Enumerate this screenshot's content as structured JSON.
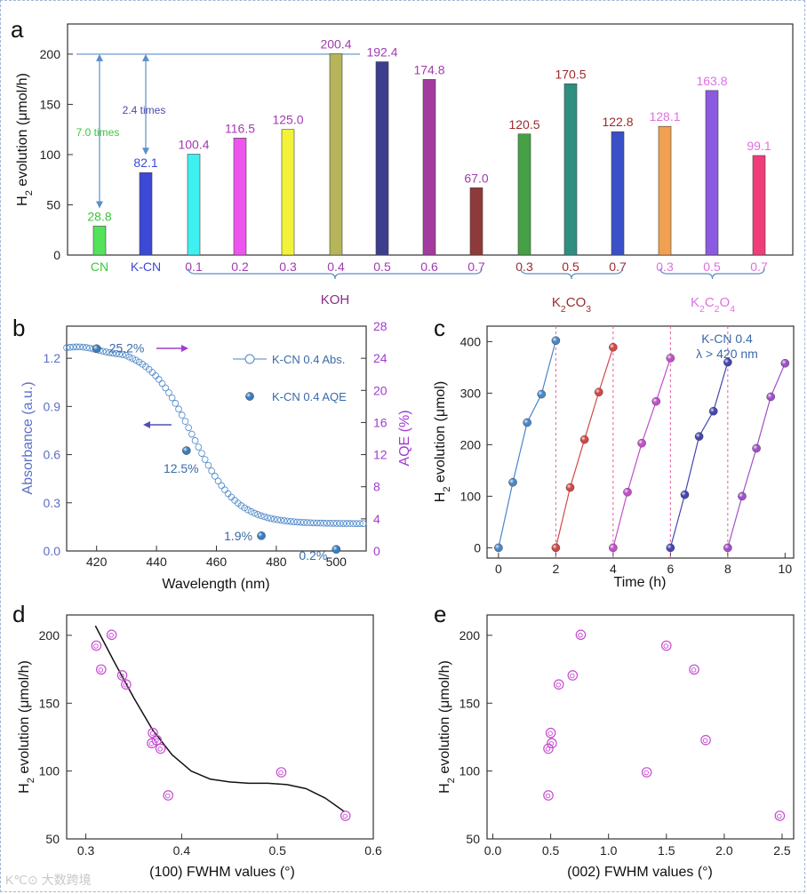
{
  "panel_labels": {
    "a": "a",
    "b": "b",
    "c": "c",
    "d": "d",
    "e": "e"
  },
  "colors": {
    "axis": "#333333",
    "purple_text": "#8a2d8a",
    "guide_blue": "#5b8fc9",
    "light_violet": "#c64bd1"
  },
  "watermark": "K℃⊙ 大数跨境",
  "chart_data": [
    {
      "id": "a",
      "type": "bar",
      "ylabel_main": "H",
      "ylabel_sub": "2",
      "ylabel_rest": " evolution (μmol/h)",
      "ylim": [
        0,
        230
      ],
      "yticks": [
        0,
        50,
        100,
        150,
        200
      ],
      "bars": [
        {
          "label": "CN",
          "value": 28.8,
          "value_label": "28.8",
          "color": "#53e35b",
          "label_color": "#3cc63c"
        },
        {
          "label": "K-CN",
          "value": 82.1,
          "value_label": "82.1",
          "color": "#3b49d6",
          "label_color": "#3b49d6"
        },
        {
          "label": "0.1",
          "value": 100.4,
          "value_label": "100.4",
          "color": "#3ef0f0",
          "label_color": "#a23bb0"
        },
        {
          "label": "0.2",
          "value": 116.5,
          "value_label": "116.5",
          "color": "#ee55ee",
          "label_color": "#a23bb0"
        },
        {
          "label": "0.3",
          "value": 125.0,
          "value_label": "125.0",
          "color": "#f2f23a",
          "label_color": "#a23bb0"
        },
        {
          "label": "0.4",
          "value": 200.4,
          "value_label": "200.4",
          "color": "#b5b55a",
          "label_color": "#a23bb0"
        },
        {
          "label": "0.5",
          "value": 192.4,
          "value_label": "192.4",
          "color": "#3d3d8e",
          "label_color": "#a23bb0"
        },
        {
          "label": "0.6",
          "value": 174.8,
          "value_label": "174.8",
          "color": "#a33a9e",
          "label_color": "#a23bb0"
        },
        {
          "label": "0.7",
          "value": 67.0,
          "value_label": "67.0",
          "color": "#8e3a3a",
          "label_color": "#a23bb0"
        },
        {
          "label": "0.3",
          "value": 120.5,
          "value_label": "120.5",
          "color": "#46a046",
          "label_color": "#9b2b2b"
        },
        {
          "label": "0.5",
          "value": 170.5,
          "value_label": "170.5",
          "color": "#2e8f80",
          "label_color": "#9b2b2b"
        },
        {
          "label": "0.7",
          "value": 122.8,
          "value_label": "122.8",
          "color": "#3a50c8",
          "label_color": "#9b2b2b"
        },
        {
          "label": "0.3",
          "value": 128.1,
          "value_label": "128.1",
          "color": "#f0a050",
          "label_color": "#e070e0"
        },
        {
          "label": "0.5",
          "value": 163.8,
          "value_label": "163.8",
          "color": "#8b5ae0",
          "label_color": "#e070e0"
        },
        {
          "label": "0.7",
          "value": 99.1,
          "value_label": "99.1",
          "color": "#f03c78",
          "label_color": "#e070e0"
        }
      ],
      "groups": [
        {
          "name": "KOH",
          "color": "#8a2d8a"
        },
        {
          "name_parts": [
            "K",
            "2",
            "CO",
            "3"
          ],
          "color": "#9b2b2b"
        },
        {
          "name_parts": [
            "K",
            "2",
            "C",
            "2",
            "O",
            "4"
          ],
          "color": "#e070e0"
        }
      ],
      "annotations": [
        {
          "text": "7.0 times",
          "color": "#3cc63c"
        },
        {
          "text": "2.4 times",
          "color": "#4a4ab0"
        }
      ],
      "reference_line_value": 200
    },
    {
      "id": "b",
      "type": "line",
      "xlabel": "Wavelength (nm)",
      "ylabel_left": "Absorbance (a.u.)",
      "ylabel_right": "AQE (%)",
      "xlim": [
        410,
        510
      ],
      "xticks": [
        420,
        440,
        460,
        480,
        500
      ],
      "ylim_left": [
        0,
        1.4
      ],
      "yticks_left": [
        "0.0",
        "0.3",
        "0.6",
        "0.9",
        "1.2"
      ],
      "ylim_right": [
        0,
        28
      ],
      "yticks_right": [
        0,
        4,
        8,
        12,
        16,
        20,
        24,
        28
      ],
      "legend": [
        {
          "text": "K-CN 0.4 Abs."
        },
        {
          "text": "K-CN 0.4 AQE"
        }
      ],
      "abs_curve": {
        "plateau": 1.27,
        "tail": 0.17,
        "midpoint_nm": 452,
        "width_nm": 7.5
      },
      "aqe_points": [
        {
          "x": 420,
          "y": 25.2,
          "label": "25.2%"
        },
        {
          "x": 450,
          "y": 12.5,
          "label": "12.5%"
        },
        {
          "x": 475,
          "y": 1.9,
          "label": "1.9%"
        },
        {
          "x": 500,
          "y": 0.2,
          "label": "0.2%"
        }
      ]
    },
    {
      "id": "c",
      "type": "scatter",
      "xlabel": "Time (h)",
      "ylabel_main": "H",
      "ylabel_sub": "2",
      "ylabel_rest": " evolution (μmol)",
      "xlim": [
        -0.4,
        10.3
      ],
      "xticks": [
        0,
        2,
        4,
        6,
        8,
        10
      ],
      "ylim": [
        -20,
        430
      ],
      "yticks": [
        0,
        100,
        200,
        300,
        400
      ],
      "legend_lines": [
        "K-CN 0.4",
        "λ > 420 nm"
      ],
      "cycle_dividers": [
        2,
        4,
        6,
        8
      ],
      "cycles": [
        {
          "color": "#4a86c8",
          "x": [
            0,
            0.5,
            1,
            1.5,
            2
          ],
          "y": [
            0,
            127,
            243,
            298,
            402
          ]
        },
        {
          "color": "#d04848",
          "x": [
            2,
            2.5,
            3,
            3.5,
            4
          ],
          "y": [
            0,
            117,
            210,
            302,
            389
          ]
        },
        {
          "color": "#c050c8",
          "x": [
            4,
            4.5,
            5,
            5.5,
            6
          ],
          "y": [
            0,
            108,
            203,
            284,
            368
          ]
        },
        {
          "color": "#4545b0",
          "x": [
            6,
            6.5,
            7,
            7.5,
            8
          ],
          "y": [
            0,
            103,
            216,
            265,
            360
          ]
        },
        {
          "color": "#a050c8",
          "x": [
            8,
            8.5,
            9,
            9.5,
            10
          ],
          "y": [
            0,
            100,
            193,
            293,
            358
          ]
        }
      ]
    },
    {
      "id": "d",
      "type": "scatter",
      "xlabel": "(100) FWHM values (°)",
      "ylabel_main": "H",
      "ylabel_sub": "2",
      "ylabel_rest": " evolution (μmol/h)",
      "xlim": [
        0.28,
        0.6
      ],
      "xticks": [
        "0.3",
        "0.4",
        "0.5",
        "0.6"
      ],
      "ylim": [
        50,
        215
      ],
      "yticks": [
        50,
        100,
        150,
        200
      ],
      "points": [
        {
          "x": 0.327,
          "y": 200.4
        },
        {
          "x": 0.311,
          "y": 192.4
        },
        {
          "x": 0.316,
          "y": 174.8
        },
        {
          "x": 0.338,
          "y": 170.5
        },
        {
          "x": 0.342,
          "y": 163.8
        },
        {
          "x": 0.37,
          "y": 128.1
        },
        {
          "x": 0.374,
          "y": 122.8
        },
        {
          "x": 0.369,
          "y": 120.5
        },
        {
          "x": 0.378,
          "y": 116.5
        },
        {
          "x": 0.386,
          "y": 82.1
        },
        {
          "x": 0.504,
          "y": 99.1
        },
        {
          "x": 0.571,
          "y": 67.0
        }
      ],
      "fit_curve": {
        "x": [
          0.31,
          0.33,
          0.35,
          0.37,
          0.39,
          0.41,
          0.43,
          0.45,
          0.47,
          0.49,
          0.51,
          0.53,
          0.55,
          0.57
        ],
        "y": [
          207,
          180,
          154,
          130,
          112,
          100,
          94,
          92,
          91,
          91,
          90,
          87,
          80,
          70
        ]
      }
    },
    {
      "id": "e",
      "type": "scatter",
      "xlabel": "(002) FWHM values (°)",
      "ylabel_main": "H",
      "ylabel_sub": "2",
      "ylabel_rest": " evolution (μmol/h)",
      "xlim": [
        -0.05,
        2.6
      ],
      "xticks": [
        "0.0",
        "0.5",
        "1.0",
        "1.5",
        "2.0",
        "2.5"
      ],
      "ylim": [
        50,
        215
      ],
      "yticks": [
        50,
        100,
        150,
        200
      ],
      "points": [
        {
          "x": 0.76,
          "y": 200.4
        },
        {
          "x": 1.5,
          "y": 192.4
        },
        {
          "x": 1.74,
          "y": 174.8
        },
        {
          "x": 0.69,
          "y": 170.5
        },
        {
          "x": 0.57,
          "y": 163.8
        },
        {
          "x": 0.5,
          "y": 128.1
        },
        {
          "x": 1.84,
          "y": 122.8
        },
        {
          "x": 0.51,
          "y": 120.5
        },
        {
          "x": 0.48,
          "y": 116.5
        },
        {
          "x": 1.33,
          "y": 99.1
        },
        {
          "x": 0.48,
          "y": 82.1
        },
        {
          "x": 2.48,
          "y": 67.0
        }
      ]
    }
  ]
}
